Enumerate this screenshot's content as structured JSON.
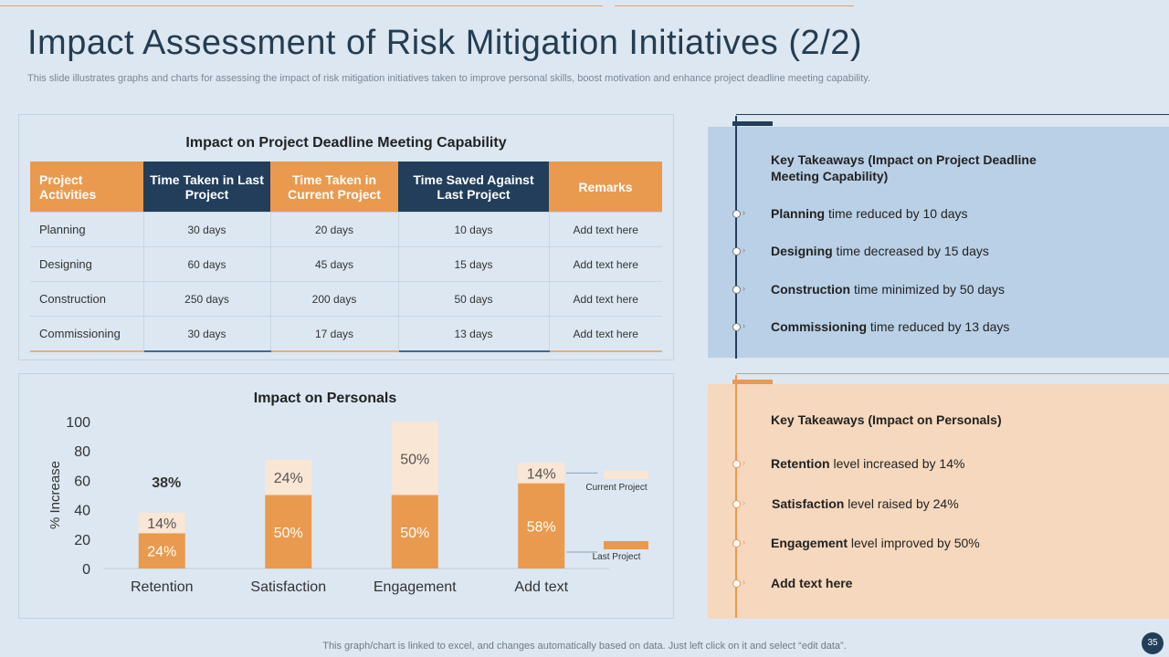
{
  "slide": {
    "title": "Impact Assessment of Risk Mitigation Initiatives (2/2)",
    "subtitle": "This slide illustrates graphs and charts for assessing the impact of risk mitigation initiatives taken to improve personal skills, boost motivation and enhance project deadline meeting capability.",
    "footer": "This graph/chart is linked to excel, and changes automatically based on data. Just left click on it and select “edit data”.",
    "page_number": "35"
  },
  "deadline_table": {
    "title": "Impact on Project Deadline Meeting Capability",
    "headers": [
      "Project Activities",
      "Time Taken in Last Project",
      "Time Taken in Current Project",
      "Time Saved Against Last Project",
      "Remarks"
    ],
    "rows": [
      [
        "Planning",
        "30 days",
        "20 days",
        "10 days",
        "Add text here"
      ],
      [
        "Designing",
        "60 days",
        "45 days",
        "15 days",
        "Add text here"
      ],
      [
        "Construction",
        "250 days",
        "200 days",
        "50 days",
        "Add text here"
      ],
      [
        "Commissioning",
        "30 days",
        "17 days",
        "13 days",
        "Add text here"
      ]
    ]
  },
  "takeaways_deadline": {
    "heading": "Key Takeaways (Impact on Project Deadline Meeting Capability)",
    "items": [
      {
        "bold": "Planning",
        "text": " time reduced by 10 days"
      },
      {
        "bold": "Designing",
        "text": " time decreased by 15 days"
      },
      {
        "bold": "Construction",
        "text": " time minimized by 50 days"
      },
      {
        "bold": "Commissioning",
        "text": "  time reduced by 13 days"
      }
    ]
  },
  "takeaways_personals": {
    "heading": "Key Takeaways (Impact on Personals)",
    "items": [
      {
        "bold": "Retention",
        "text": " level increased by 14%"
      },
      {
        "bold": "Satisfaction",
        "text": " level raised by 24%"
      },
      {
        "bold": "Engagement",
        "text": " level improved by 50%"
      },
      {
        "bold": "Add  text here",
        "text": ""
      }
    ]
  },
  "colors": {
    "navy": "#223e5a",
    "orange": "#e99a4e",
    "light_peach": "#fae6d4",
    "blue_panel": "#bad0e6",
    "peach_panel": "#f5d8bd"
  },
  "chart_data": {
    "type": "bar",
    "title": "Impact on Personals",
    "ylabel": "% Increase",
    "ylim": [
      0,
      100
    ],
    "yticks": [
      0,
      20,
      40,
      60,
      80,
      100
    ],
    "categories": [
      "Retention",
      "Satisfaction",
      "Engagement",
      "Add text"
    ],
    "stacked": true,
    "series": [
      {
        "name": "Last Project",
        "values": [
          24,
          50,
          50,
          58
        ],
        "labels": [
          "24%",
          "50%",
          "50%",
          "58%"
        ],
        "color": "#e99a4e"
      },
      {
        "name": "Current Project",
        "values": [
          14,
          24,
          50,
          14
        ],
        "labels": [
          "14%",
          "24%",
          "50%",
          "14%"
        ],
        "color": "#fae6d4"
      }
    ],
    "annotations": [
      {
        "category": "Retention",
        "text": "38%"
      }
    ],
    "legend": "right"
  }
}
